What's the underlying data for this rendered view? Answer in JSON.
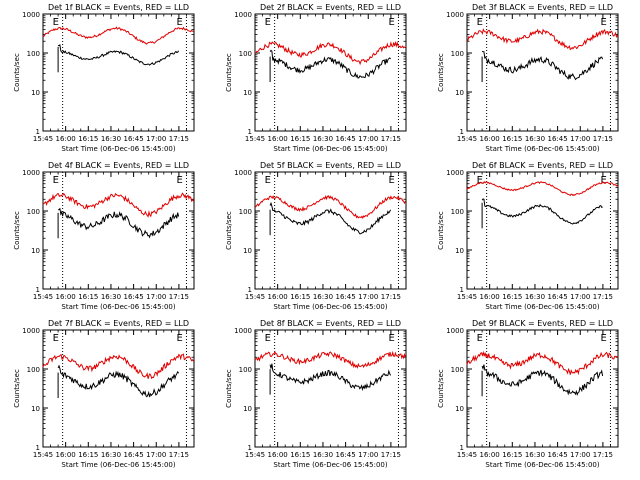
{
  "figure": {
    "xlabel_template": "Start Time (06-Dec-06 15:45:00)",
    "ylabel": "Counts/sec",
    "marker": "E"
  },
  "chart_data": [
    {
      "type": "line",
      "title": "Det 1f BLACK = Events, RED = LLD",
      "ylim": [
        1,
        1000
      ],
      "log_y": true,
      "series": [
        {
          "name": "LLD",
          "color": "#e00000",
          "level": 300,
          "osc": 0.3,
          "noise": 0.03,
          "start": 0.0,
          "end": 0.0
        },
        {
          "name": "Events",
          "color": "#000000",
          "level": 80,
          "osc": 0.25,
          "noise": 0.03,
          "start": 0.0,
          "end": 0.0
        }
      ]
    },
    {
      "type": "line",
      "title": "Det 2f BLACK = Events, RED = LLD",
      "ylim": [
        1,
        1000
      ],
      "log_y": true,
      "series": [
        {
          "name": "LLD",
          "color": "#e00000",
          "level": 110,
          "osc": 0.35,
          "noise": 0.06,
          "start": 0.0,
          "end": 0.0
        },
        {
          "name": "Events",
          "color": "#000000",
          "level": 45,
          "osc": 0.35,
          "noise": 0.07,
          "start": 0.0,
          "end": 0.0
        }
      ]
    },
    {
      "type": "line",
      "title": "Det 3f BLACK = Events, RED = LLD",
      "ylim": [
        1,
        1000
      ],
      "log_y": true,
      "series": [
        {
          "name": "LLD",
          "color": "#e00000",
          "level": 240,
          "osc": 0.32,
          "noise": 0.06,
          "start": 0.0,
          "end": 0.0
        },
        {
          "name": "Events",
          "color": "#000000",
          "level": 45,
          "osc": 0.35,
          "noise": 0.08,
          "start": 0.0,
          "end": 0.0
        }
      ]
    },
    {
      "type": "line",
      "title": "Det 4f BLACK = Events, RED = LLD",
      "ylim": [
        1,
        1000
      ],
      "log_y": true,
      "series": [
        {
          "name": "LLD",
          "color": "#e00000",
          "level": 160,
          "osc": 0.38,
          "noise": 0.06,
          "start": 0.0,
          "end": 0.0
        },
        {
          "name": "Events",
          "color": "#000000",
          "level": 50,
          "osc": 0.4,
          "noise": 0.08,
          "start": 0.0,
          "end": 0.0
        }
      ]
    },
    {
      "type": "line",
      "title": "Det 5f BLACK = Events, RED = LLD",
      "ylim": [
        1,
        1000
      ],
      "log_y": true,
      "series": [
        {
          "name": "LLD",
          "color": "#e00000",
          "level": 140,
          "osc": 0.4,
          "noise": 0.04,
          "start": 0.0,
          "end": 0.0
        },
        {
          "name": "Events",
          "color": "#000000",
          "level": 60,
          "osc": 0.42,
          "noise": 0.05,
          "start": 0.0,
          "end": 0.0
        }
      ]
    },
    {
      "type": "line",
      "title": "Det 6f BLACK = Events, RED = LLD",
      "ylim": [
        1,
        1000
      ],
      "log_y": true,
      "series": [
        {
          "name": "LLD",
          "color": "#e00000",
          "level": 400,
          "osc": 0.25,
          "noise": 0.02,
          "start": 0.0,
          "end": 0.0
        },
        {
          "name": "Events",
          "color": "#000000",
          "level": 90,
          "osc": 0.35,
          "noise": 0.03,
          "start": 0.0,
          "end": 0.0
        }
      ]
    },
    {
      "type": "line",
      "title": "Det 7f BLACK = Events, RED = LLD",
      "ylim": [
        1,
        1000
      ],
      "log_y": true,
      "series": [
        {
          "name": "LLD",
          "color": "#e00000",
          "level": 130,
          "osc": 0.4,
          "noise": 0.07,
          "start": 0.0,
          "end": 0.0
        },
        {
          "name": "Events",
          "color": "#000000",
          "level": 45,
          "osc": 0.4,
          "noise": 0.08,
          "start": 0.0,
          "end": 0.0
        }
      ]
    },
    {
      "type": "line",
      "title": "Det 8f BLACK = Events, RED = LLD",
      "ylim": [
        1,
        1000
      ],
      "log_y": true,
      "series": [
        {
          "name": "LLD",
          "color": "#e00000",
          "level": 180,
          "osc": 0.25,
          "noise": 0.06,
          "start": 0.0,
          "end": 0.0
        },
        {
          "name": "Events",
          "color": "#000000",
          "level": 55,
          "osc": 0.3,
          "noise": 0.07,
          "start": 0.0,
          "end": 0.0
        }
      ]
    },
    {
      "type": "line",
      "title": "Det 9f BLACK = Events, RED = LLD",
      "ylim": [
        1,
        1000
      ],
      "log_y": true,
      "series": [
        {
          "name": "LLD",
          "color": "#e00000",
          "level": 150,
          "osc": 0.35,
          "noise": 0.07,
          "start": 0.0,
          "end": 0.0
        },
        {
          "name": "Events",
          "color": "#000000",
          "level": 50,
          "osc": 0.4,
          "noise": 0.08,
          "start": 0.0,
          "end": 0.0
        }
      ]
    }
  ],
  "xticks": [
    "15:45",
    "16:00",
    "16:15",
    "16:30",
    "16:45",
    "17:00",
    "17:15"
  ],
  "yticks": [
    "1",
    "10",
    "100",
    "1000"
  ]
}
